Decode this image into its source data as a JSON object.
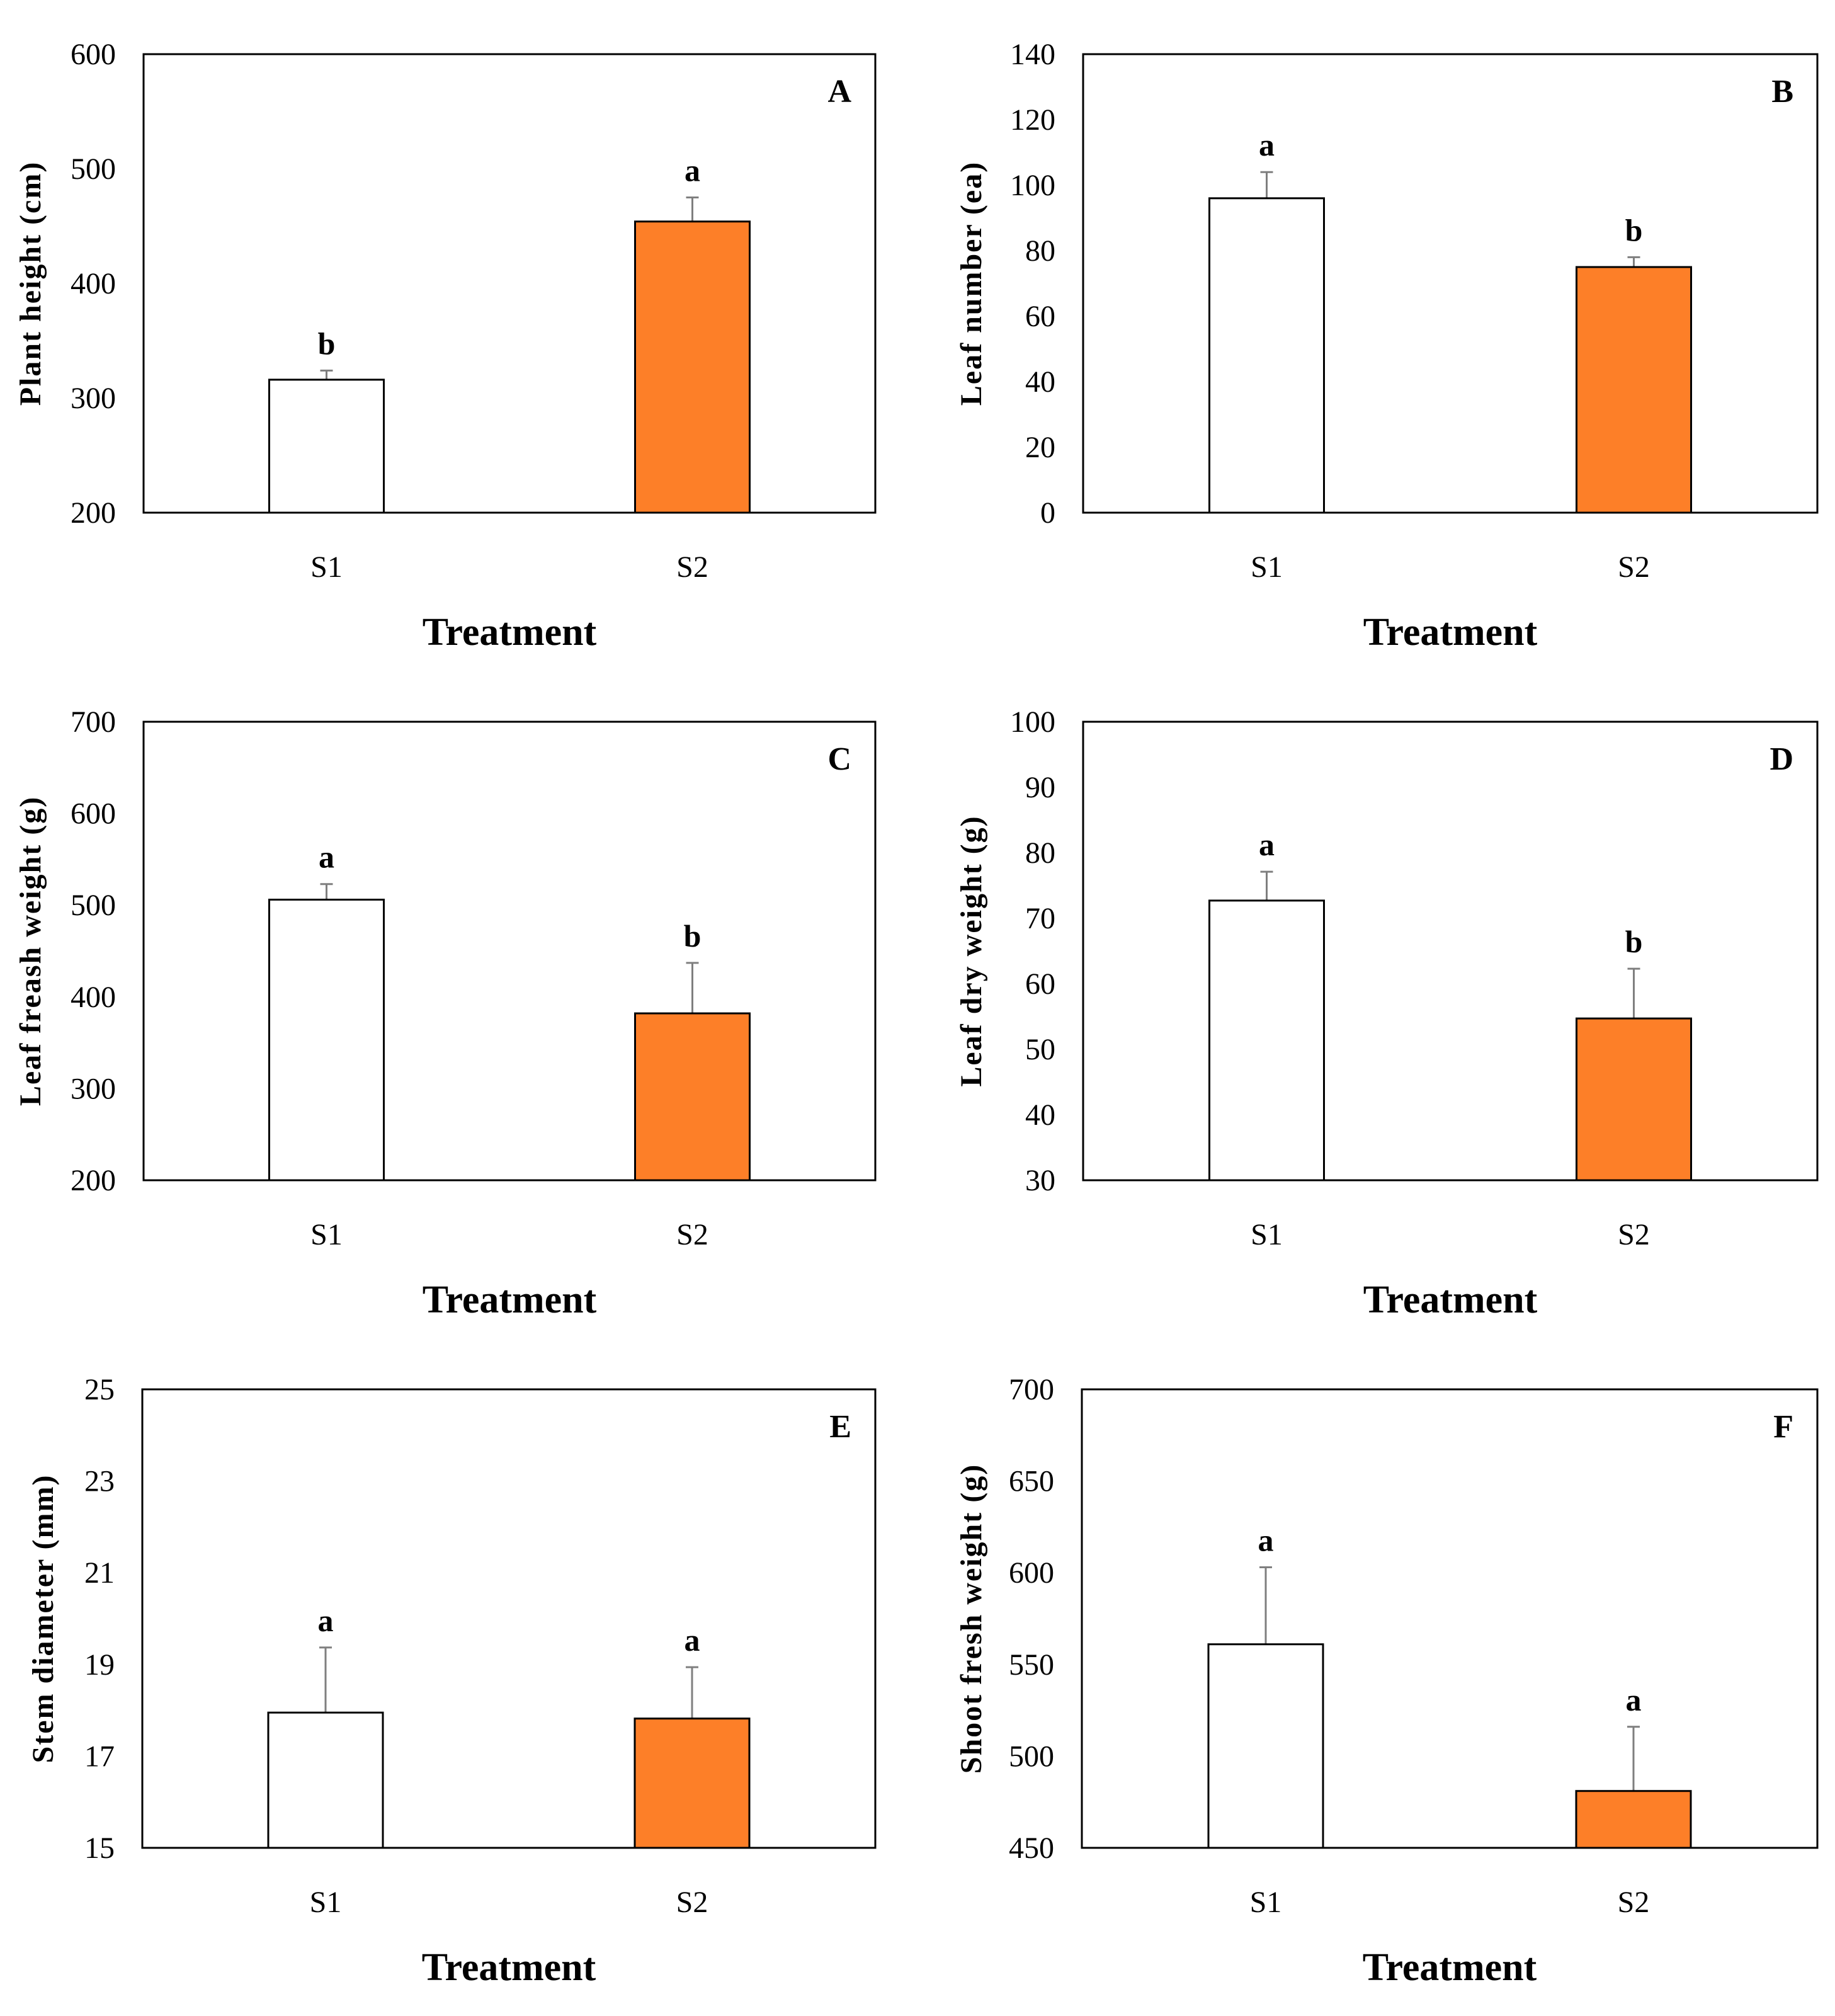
{
  "colors": {
    "s1_fill": "#ffffff",
    "s2_fill": "#fd7f28",
    "stroke": "#000000",
    "error": "#7f7f7f"
  },
  "chart_data": [
    {
      "type": "bar",
      "panel": "A",
      "categories": [
        "S1",
        "S2"
      ],
      "values": [
        316,
        454
      ],
      "errors": [
        8,
        21
      ],
      "significance": [
        "b",
        "a"
      ],
      "ylabel": "Plant height (cm)",
      "xlabel": "Treatment",
      "ylim": [
        200,
        600
      ],
      "yticks": [
        200,
        300,
        400,
        500,
        600
      ]
    },
    {
      "type": "bar",
      "panel": "B",
      "categories": [
        "S1",
        "S2"
      ],
      "values": [
        96,
        75
      ],
      "errors": [
        8,
        3
      ],
      "significance": [
        "a",
        "b"
      ],
      "ylabel": "Leaf number (ea)",
      "xlabel": "Treatment",
      "ylim": [
        0,
        140
      ],
      "yticks": [
        0,
        20,
        40,
        60,
        80,
        100,
        120,
        140
      ]
    },
    {
      "type": "bar",
      "panel": "C",
      "categories": [
        "S1",
        "S2"
      ],
      "values": [
        506,
        382
      ],
      "errors": [
        17,
        55
      ],
      "significance": [
        "a",
        "b"
      ],
      "ylabel": "Leaf freash weight (g)",
      "xlabel": "Treatment",
      "ylim": [
        200,
        700
      ],
      "yticks": [
        200,
        300,
        400,
        500,
        600,
        700
      ]
    },
    {
      "type": "bar",
      "panel": "D",
      "categories": [
        "S1",
        "S2"
      ],
      "values": [
        72.7,
        54.7
      ],
      "errors": [
        4.4,
        7.6
      ],
      "significance": [
        "a",
        "b"
      ],
      "ylabel": "Leaf dry weight (g)",
      "xlabel": "Treatment",
      "ylim": [
        30,
        100
      ],
      "yticks": [
        30,
        40,
        50,
        60,
        70,
        80,
        90,
        100
      ]
    },
    {
      "type": "bar",
      "panel": "E",
      "categories": [
        "S1",
        "S2"
      ],
      "values": [
        17.95,
        17.82
      ],
      "errors": [
        1.42,
        1.12
      ],
      "significance": [
        "a",
        "a"
      ],
      "ylabel": "Stem diameter (mm)",
      "xlabel": "Treatment",
      "ylim": [
        15,
        25
      ],
      "yticks": [
        15,
        17,
        19,
        21,
        23,
        25
      ]
    },
    {
      "type": "bar",
      "panel": "F",
      "categories": [
        "S1",
        "S2"
      ],
      "values": [
        561,
        481
      ],
      "errors": [
        42,
        35
      ],
      "significance": [
        "a",
        "a"
      ],
      "ylabel": "Shoot fresh weight (g)",
      "xlabel": "Treatment",
      "ylim": [
        450,
        700
      ],
      "yticks": [
        450,
        500,
        550,
        600,
        650,
        700
      ]
    }
  ]
}
